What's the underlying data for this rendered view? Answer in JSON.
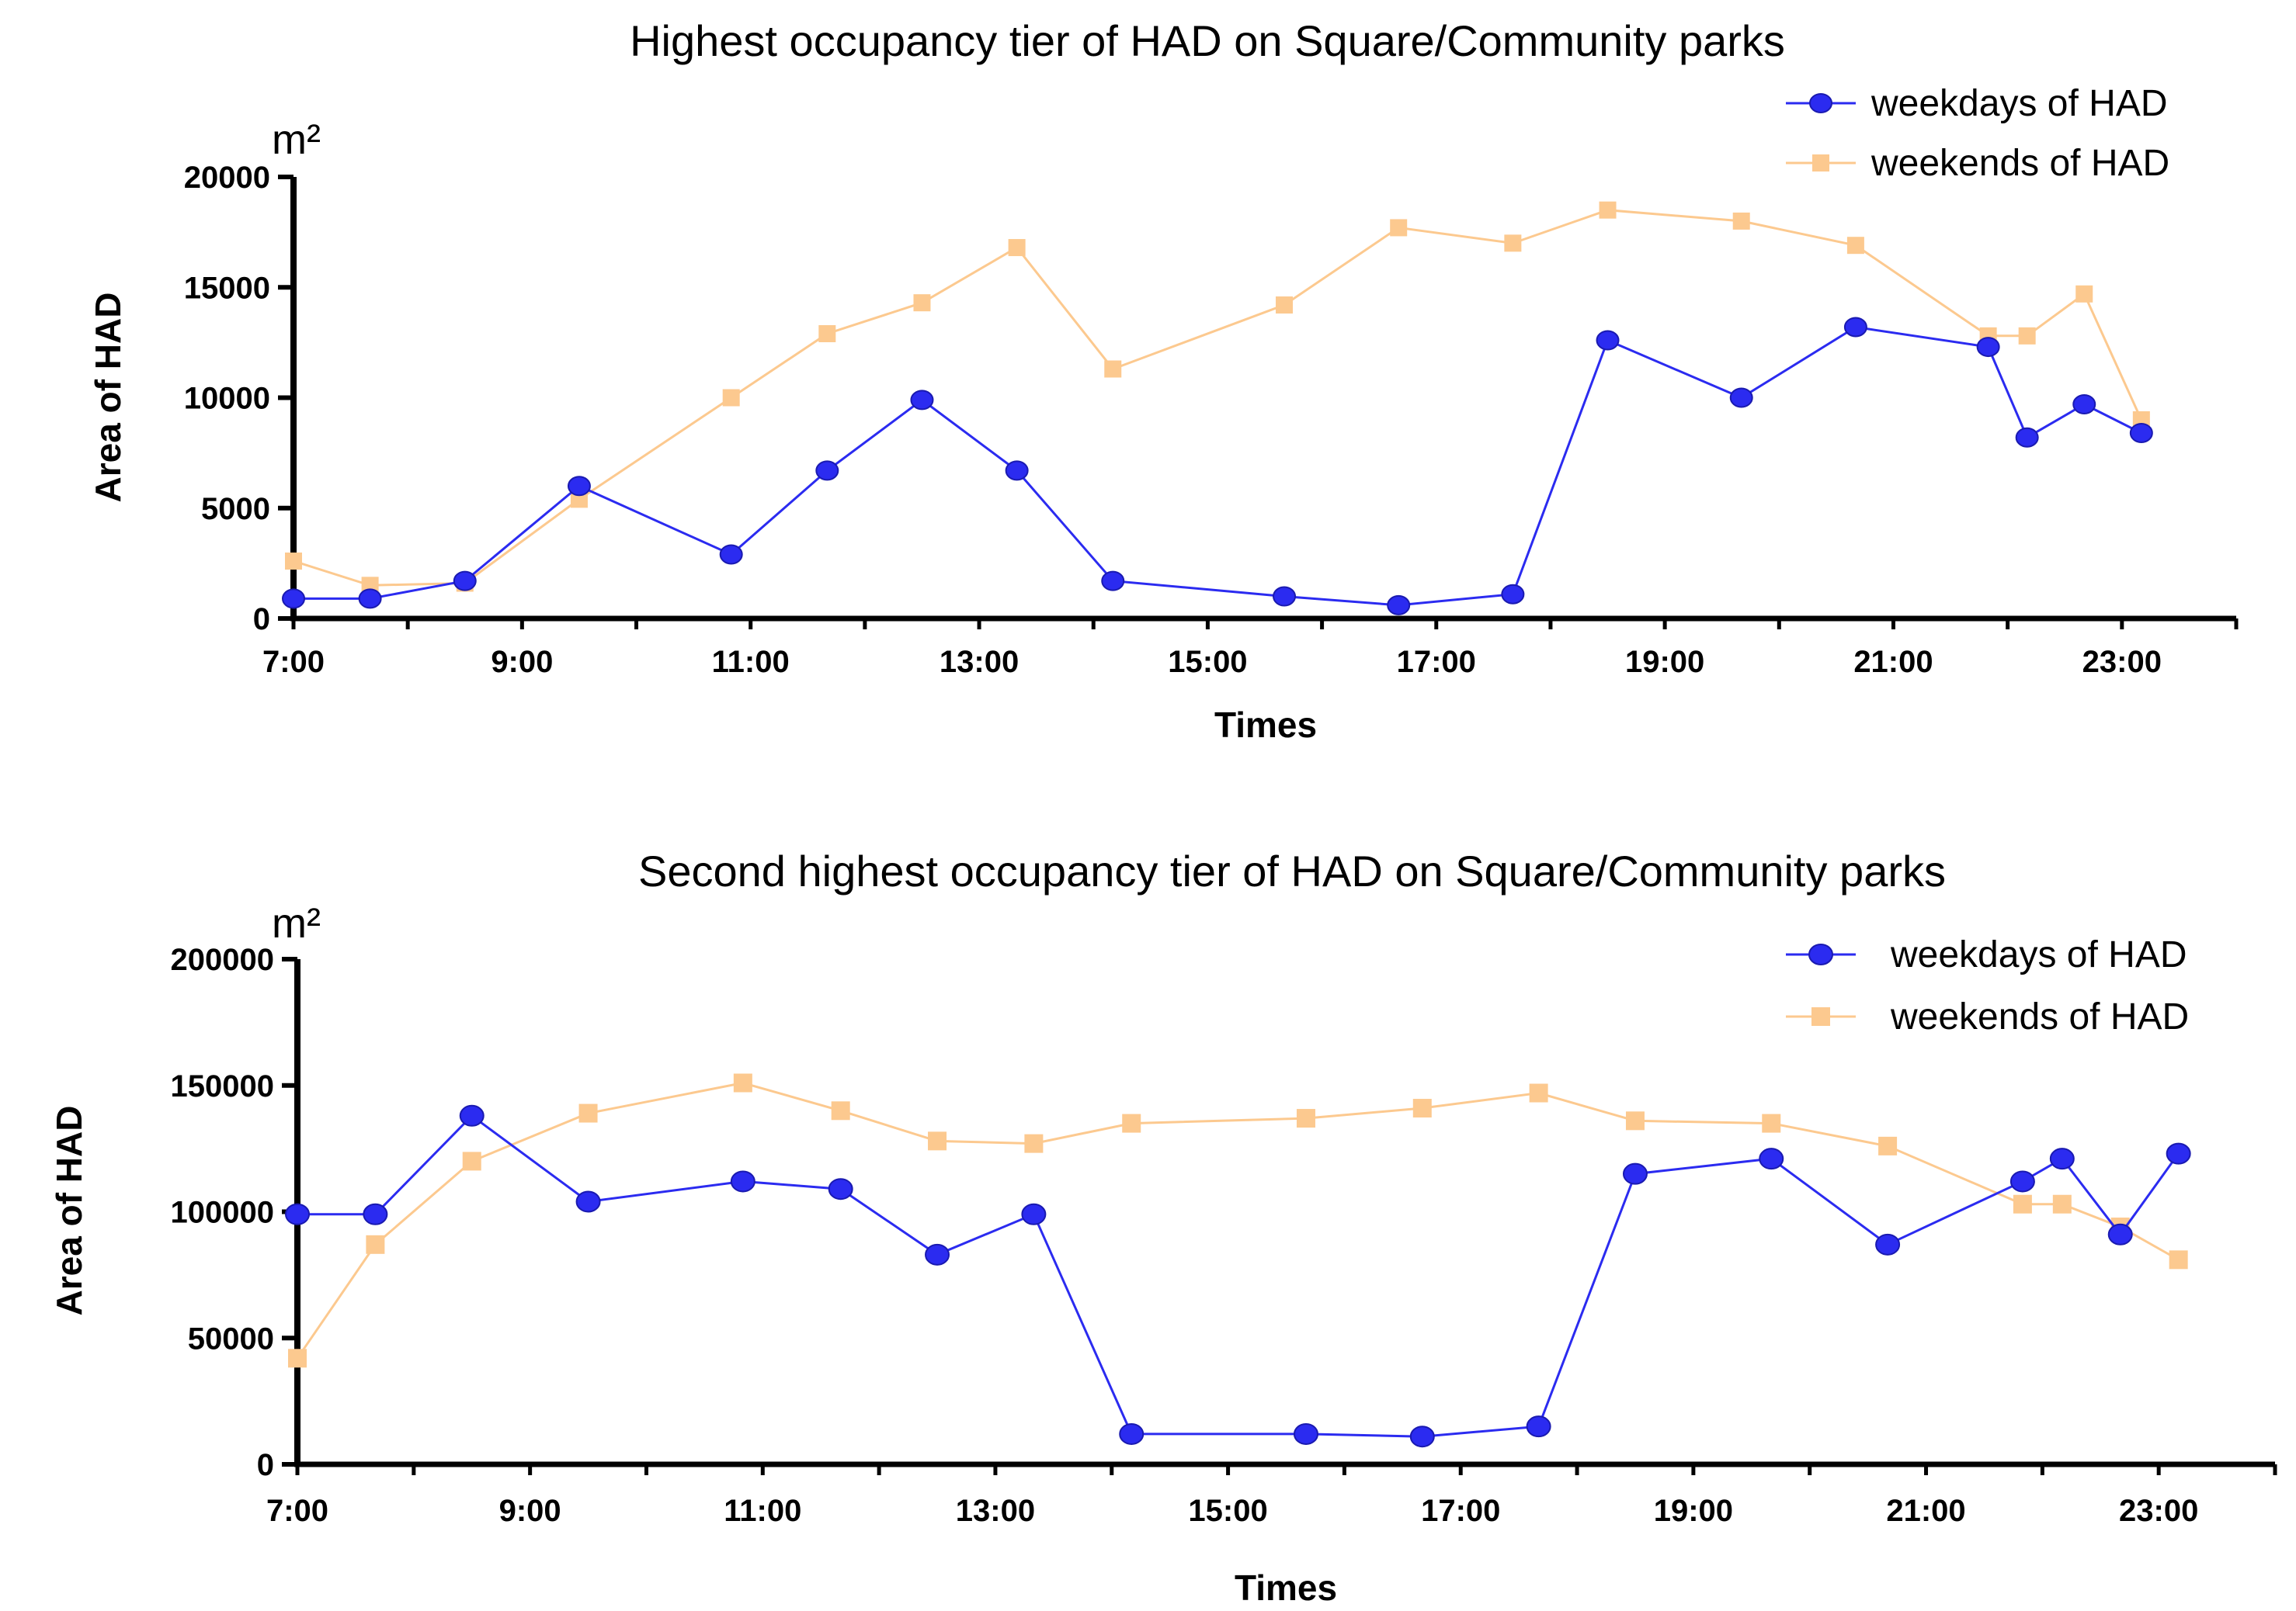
{
  "chart_data": [
    {
      "type": "line",
      "title": "Highest occupancy tier of HAD on Square/Community parks",
      "unit_label": "m²",
      "xlabel": "Times",
      "ylabel": "Area of HAD",
      "xlim": [
        7,
        24
      ],
      "ylim": [
        0,
        20000
      ],
      "x_tick_labels": [
        "7:00",
        "9:00",
        "11:00",
        "13:00",
        "15:00",
        "17:00",
        "19:00",
        "21:00",
        "23:00"
      ],
      "x_tick_values": [
        7,
        9,
        11,
        13,
        15,
        17,
        19,
        21,
        23
      ],
      "y_tick_values": [
        0,
        5000,
        10000,
        15000,
        20000
      ],
      "y_tick_labels": [
        "0",
        "5000",
        "10000",
        "15000",
        "20000"
      ],
      "legend_position": "top-right",
      "series": [
        {
          "name": "weekdays of HAD",
          "color": "#2b2bf0",
          "marker": "circle",
          "x": [
            7.0,
            7.67,
            8.5,
            9.5,
            10.83,
            11.67,
            12.5,
            13.33,
            14.17,
            15.67,
            16.67,
            17.67,
            18.5,
            19.67,
            20.67,
            21.83,
            22.17,
            22.67,
            23.17
          ],
          "y": [
            900,
            900,
            1700,
            6000,
            2900,
            6700,
            9900,
            6700,
            1700,
            1000,
            600,
            1100,
            12600,
            10000,
            13200,
            12300,
            8200,
            9700,
            8400
          ]
        },
        {
          "name": "weekends of HAD",
          "color": "#fcc98f",
          "marker": "square",
          "x": [
            7.0,
            7.67,
            8.5,
            9.5,
            10.83,
            11.67,
            12.5,
            13.33,
            14.17,
            15.67,
            16.67,
            17.67,
            18.5,
            19.67,
            20.67,
            21.83,
            22.17,
            22.67,
            23.17
          ],
          "y": [
            2600,
            1500,
            1600,
            5400,
            10000,
            12900,
            14300,
            16800,
            11300,
            14200,
            17700,
            17000,
            18500,
            18000,
            16900,
            12800,
            12800,
            14700,
            9000
          ]
        }
      ]
    },
    {
      "type": "line",
      "title": "Second highest occupancy tier of HAD on Square/Community parks",
      "unit_label": "m²",
      "xlabel": "Times",
      "ylabel": "Area of HAD",
      "xlim": [
        7,
        24
      ],
      "ylim": [
        0,
        200000
      ],
      "x_tick_labels": [
        "7:00",
        "9:00",
        "11:00",
        "13:00",
        "15:00",
        "17:00",
        "19:00",
        "21:00",
        "23:00"
      ],
      "x_tick_values": [
        7,
        9,
        11,
        13,
        15,
        17,
        19,
        21,
        23
      ],
      "y_tick_values": [
        0,
        50000,
        100000,
        150000,
        200000
      ],
      "y_tick_labels": [
        "0",
        "50000",
        "100000",
        "150000",
        "200000"
      ],
      "legend_position": "top-right",
      "series": [
        {
          "name": "weekdays of HAD",
          "color": "#2b2bf0",
          "marker": "circle",
          "x": [
            7.0,
            7.67,
            8.5,
            9.5,
            10.83,
            11.67,
            12.5,
            13.33,
            14.17,
            15.67,
            16.67,
            17.67,
            18.5,
            19.67,
            20.67,
            21.83,
            22.17,
            22.67,
            23.17
          ],
          "y": [
            99000,
            99000,
            138000,
            104000,
            112000,
            109000,
            83000,
            99000,
            12000,
            12000,
            11000,
            15000,
            115000,
            121000,
            87000,
            112000,
            121000,
            91000,
            123000
          ]
        },
        {
          "name": "weekends of HAD",
          "color": "#fcc98f",
          "marker": "square",
          "x": [
            7.0,
            7.67,
            8.5,
            9.5,
            10.83,
            11.67,
            12.5,
            13.33,
            14.17,
            15.67,
            16.67,
            17.67,
            18.5,
            19.67,
            20.67,
            21.83,
            22.17,
            22.67,
            23.17
          ],
          "y": [
            42000,
            87000,
            120000,
            139000,
            151000,
            140000,
            128000,
            127000,
            135000,
            137000,
            141000,
            147000,
            136000,
            135000,
            126000,
            103000,
            103000,
            94000,
            81000
          ]
        }
      ]
    }
  ]
}
